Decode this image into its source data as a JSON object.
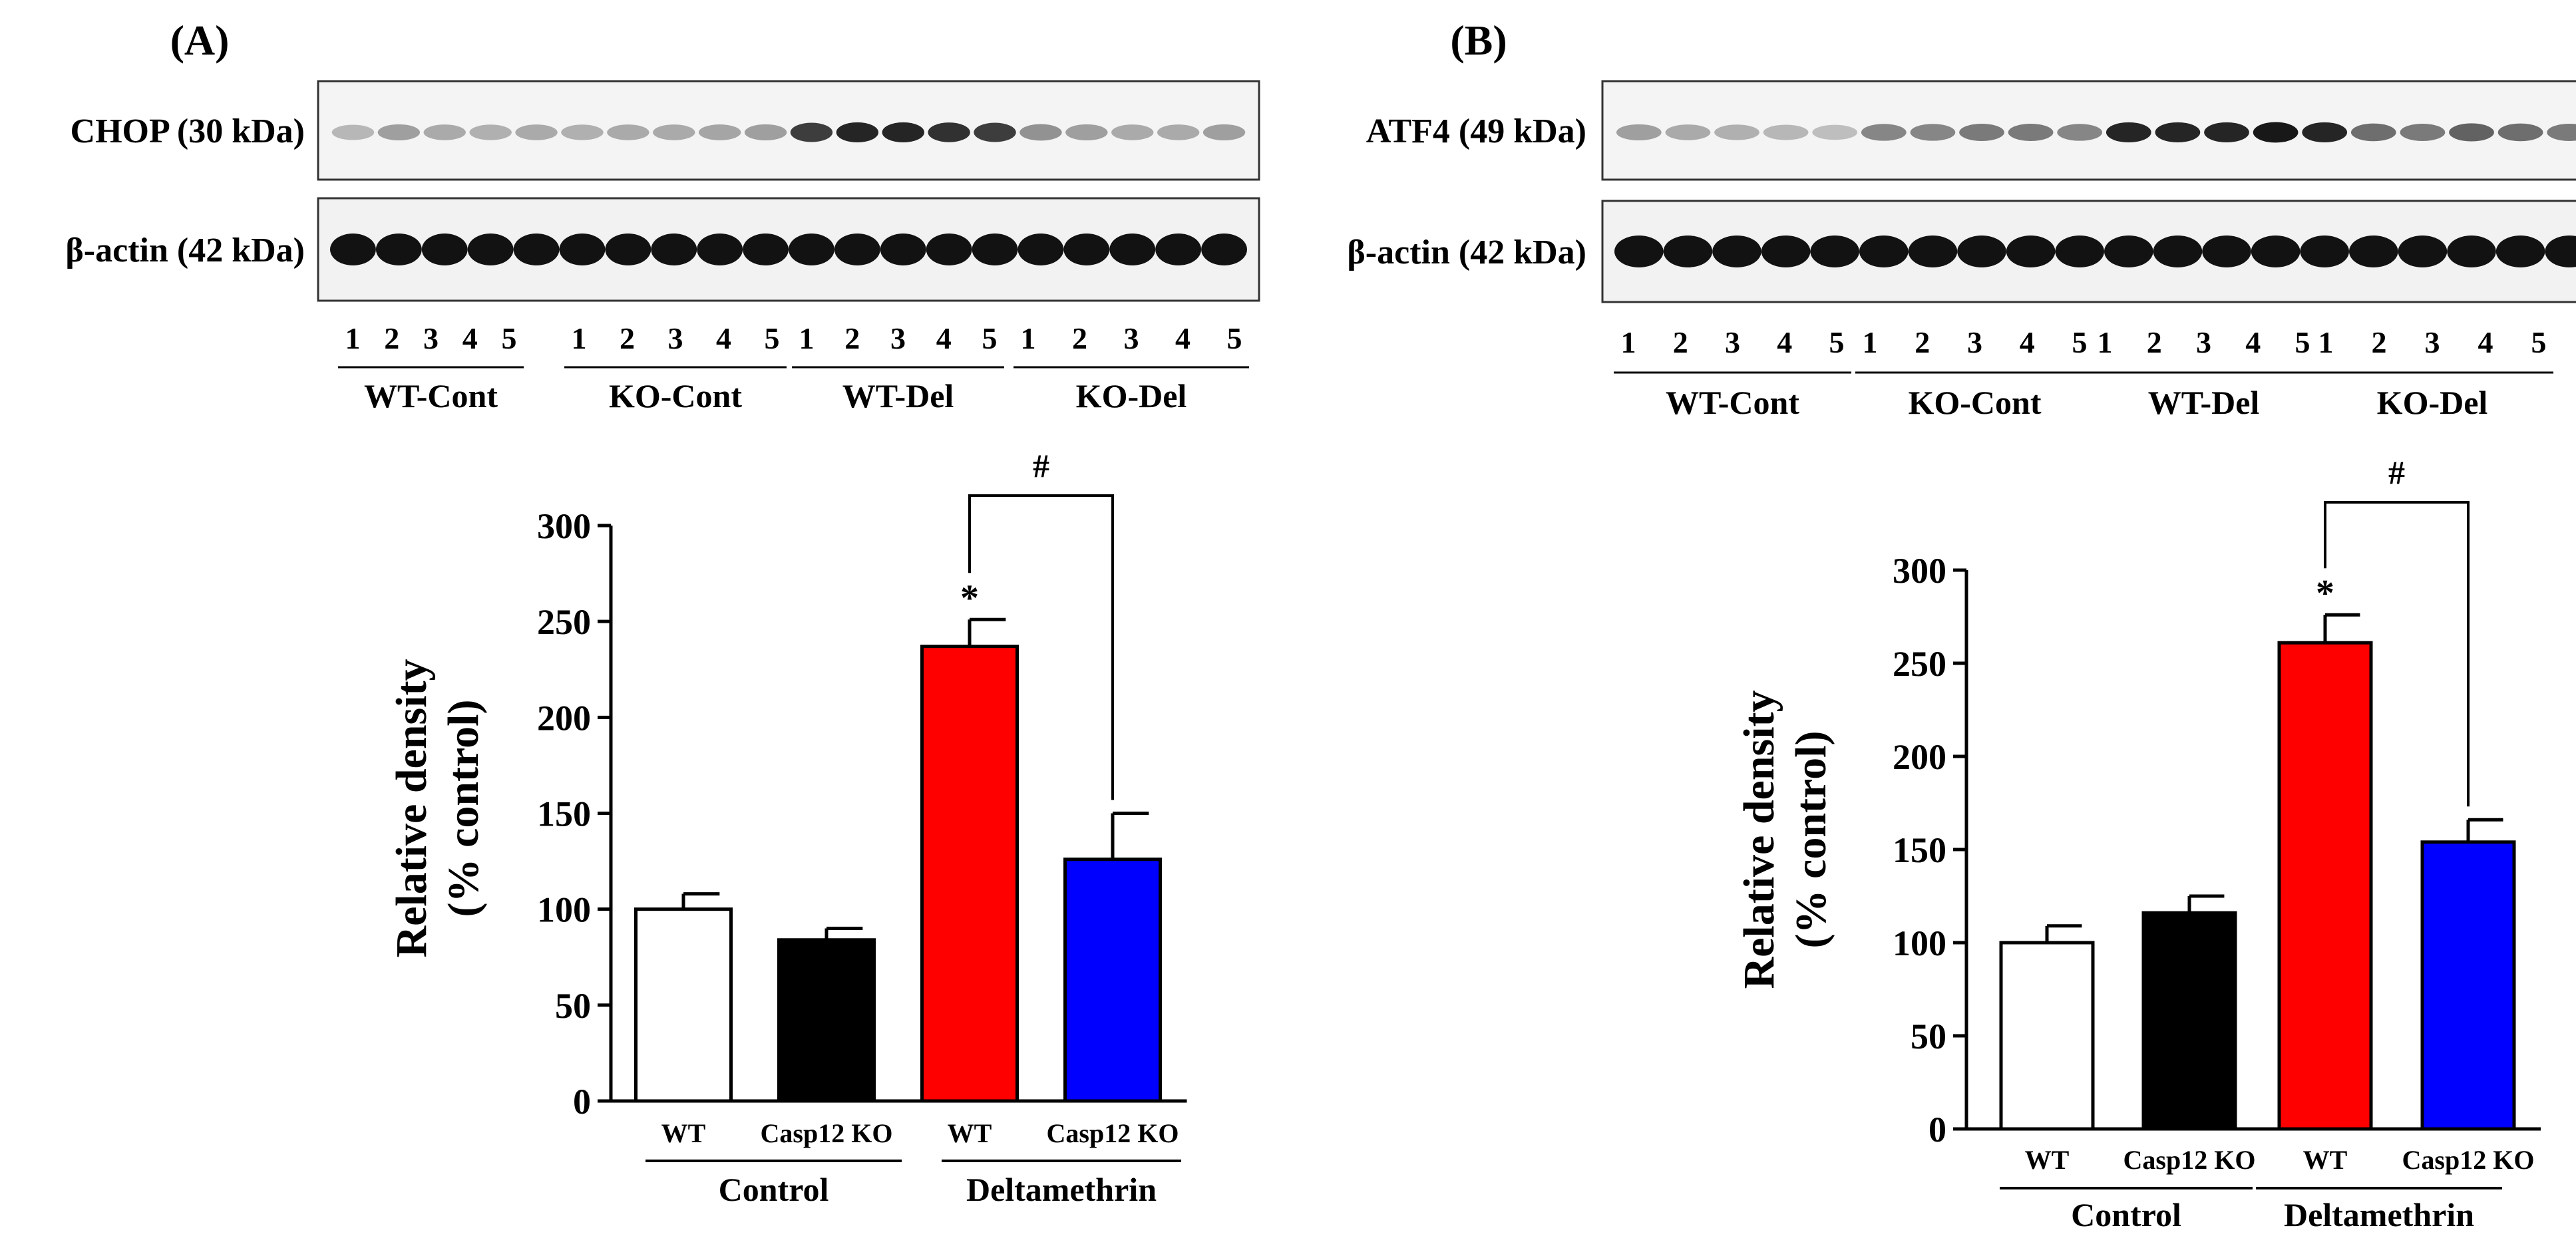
{
  "chart_data": [
    {
      "panel": "(A)",
      "type": "bar",
      "blot": {
        "target_label": "CHOP (30 kDa)",
        "loading_label": "β-actin (42 kDa)",
        "lane_numbers": [
          "1",
          "2",
          "3",
          "4",
          "5"
        ],
        "groups": [
          "WT-Cont",
          "KO-Cont",
          "WT-Del",
          "KO-Del"
        ]
      },
      "categories": [
        "WT",
        "Casp12 KO",
        "WT",
        "Casp12 KO"
      ],
      "groups": [
        "Control",
        "Deltamethrin"
      ],
      "values": [
        100,
        84,
        237,
        126
      ],
      "errors": [
        8,
        6,
        14,
        24
      ],
      "colors": [
        "#ffffff",
        "#000000",
        "#ff0000",
        "#0000ff"
      ],
      "significance": [
        "",
        "",
        "*",
        ""
      ],
      "bracket": {
        "from": 2,
        "to": 3,
        "label": "#"
      },
      "ylabel": "Relative density\n(% control)",
      "ylim": [
        0,
        300
      ],
      "yticks": [
        0,
        50,
        100,
        150,
        200,
        250,
        300
      ]
    },
    {
      "panel": "(B)",
      "type": "bar",
      "blot": {
        "target_label": "ATF4 (49 kDa)",
        "loading_label": "β-actin (42 kDa)",
        "lane_numbers": [
          "1",
          "2",
          "3",
          "4",
          "5"
        ],
        "groups": [
          "WT-Cont",
          "KO-Cont",
          "WT-Del",
          "KO-Del"
        ]
      },
      "categories": [
        "WT",
        "Casp12 KO",
        "WT",
        "Casp12 KO"
      ],
      "groups": [
        "Control",
        "Deltamethrin"
      ],
      "values": [
        100,
        116,
        261,
        154
      ],
      "errors": [
        9,
        9,
        15,
        12
      ],
      "colors": [
        "#ffffff",
        "#000000",
        "#ff0000",
        "#0000ff"
      ],
      "significance": [
        "",
        "",
        "*",
        ""
      ],
      "bracket": {
        "from": 2,
        "to": 3,
        "label": "#"
      },
      "ylabel": "Relative density\n(% control)",
      "ylim": [
        0,
        300
      ],
      "yticks": [
        0,
        50,
        100,
        150,
        200,
        250,
        300
      ]
    }
  ]
}
